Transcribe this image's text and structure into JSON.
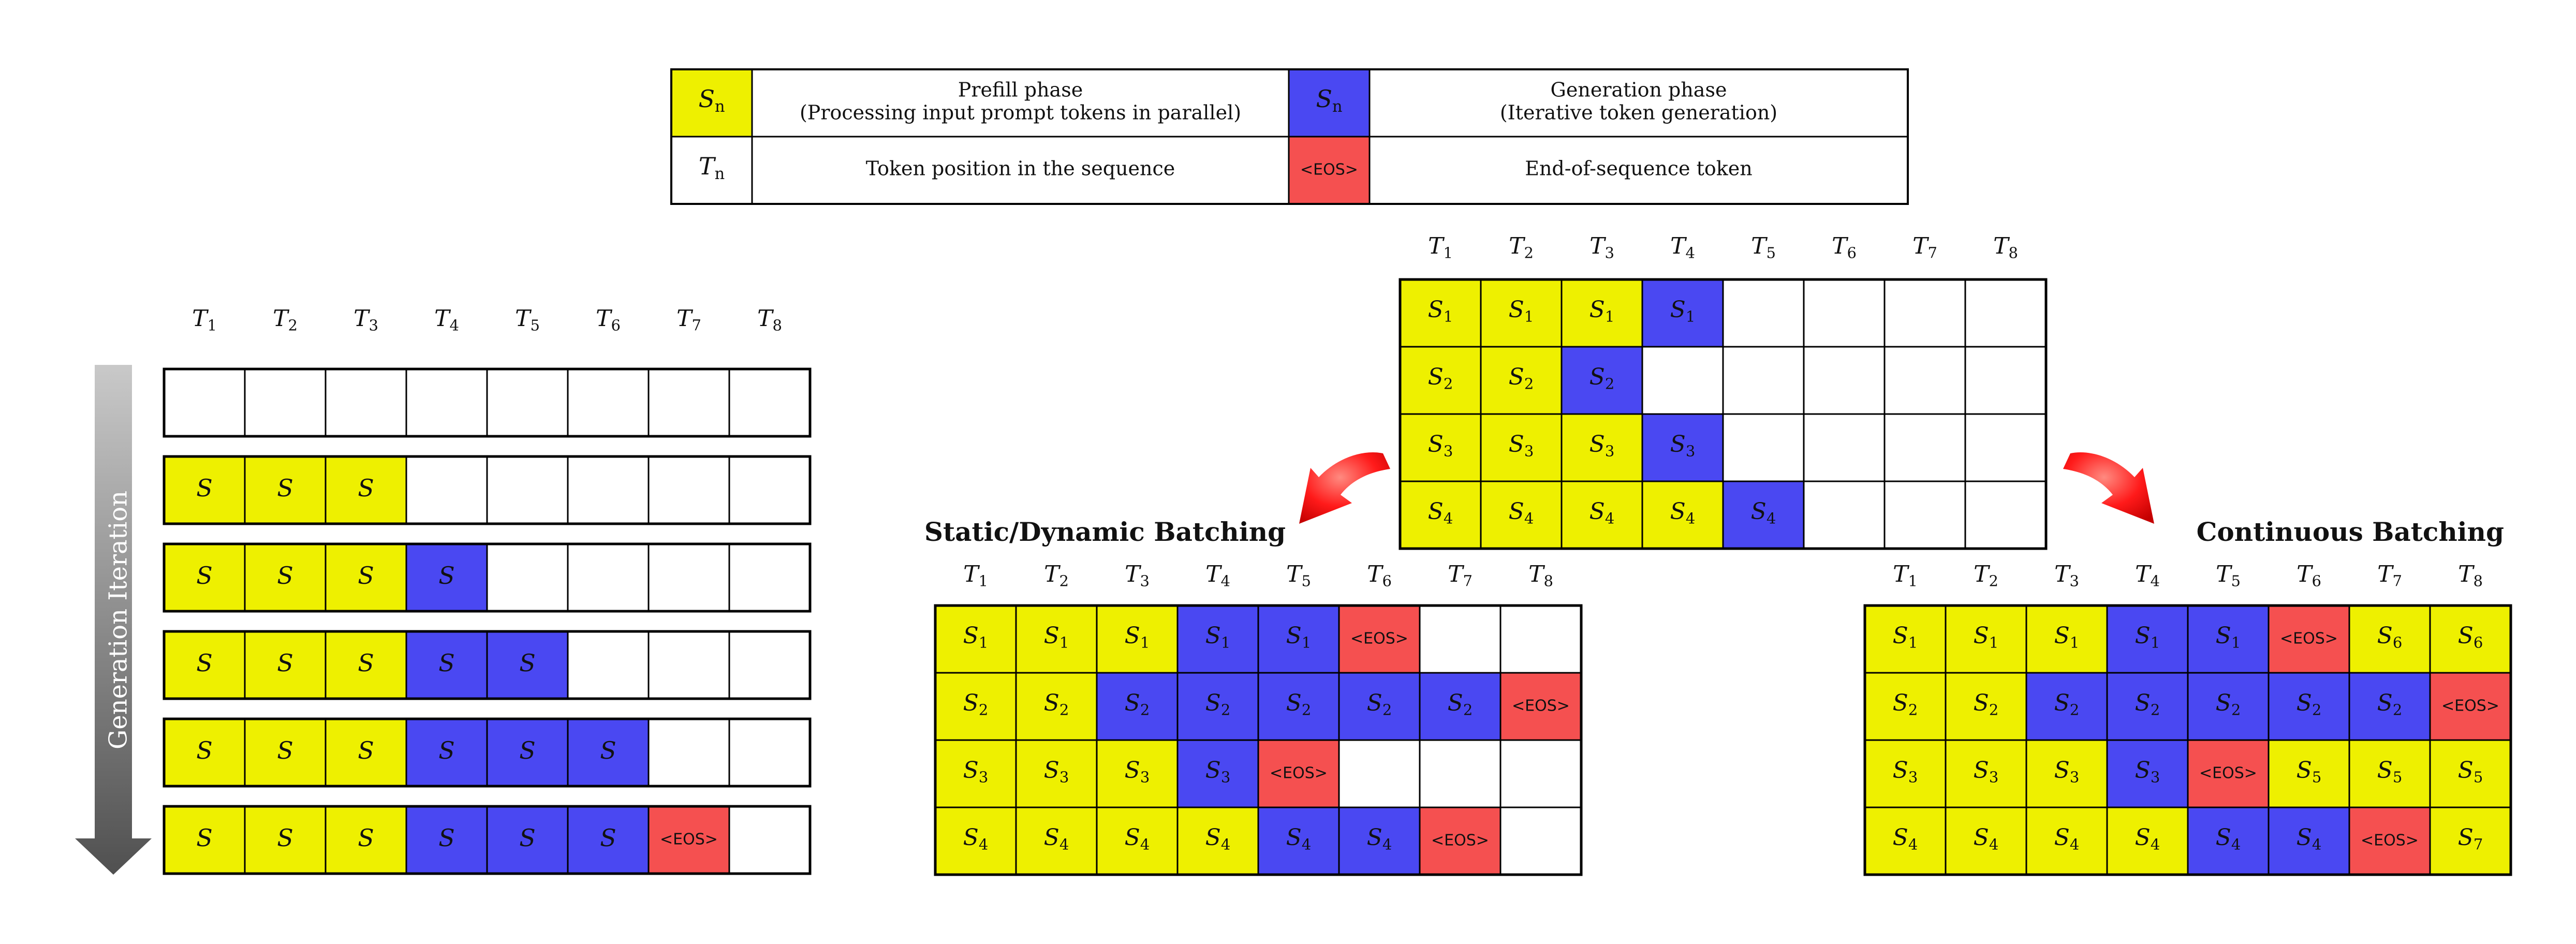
{
  "legend": {
    "rows": [
      [
        {
          "symbol": {
            "base": "S",
            "sub": "n"
          },
          "color": "#eef000",
          "text": [
            "Prefill phase",
            "(Processing input prompt tokens in parallel)"
          ]
        },
        {
          "symbol": {
            "base": "S",
            "sub": "n"
          },
          "color": "#4a48f2",
          "text": [
            "Generation phase",
            "(Iterative token generation)"
          ]
        }
      ],
      [
        {
          "symbol": {
            "base": "T",
            "sub": "n"
          },
          "color": "#ffffff",
          "text": [
            "Token position in the sequence"
          ]
        },
        {
          "symbol": {
            "eos": "<EOS>"
          },
          "color": "#f55050",
          "text": [
            "End-of-sequence token"
          ]
        }
      ]
    ]
  },
  "colors": {
    "prefill": "#eef000",
    "generation": "#4a48f2",
    "eos": "#f55050",
    "empty": "#ffffff",
    "border": "#000000"
  },
  "token_headers": [
    "T1",
    "T2",
    "T3",
    "T4",
    "T5",
    "T6",
    "T7",
    "T8"
  ],
  "eos_label": "<EOS>",
  "generation_iteration": {
    "axis_label": "Generation Iteration",
    "rows": [
      [
        {
          "k": "E"
        },
        {
          "k": "E"
        },
        {
          "k": "E"
        },
        {
          "k": "E"
        },
        {
          "k": "E"
        },
        {
          "k": "E"
        },
        {
          "k": "E"
        },
        {
          "k": "E"
        }
      ],
      [
        {
          "k": "P",
          "t": "S"
        },
        {
          "k": "P",
          "t": "S"
        },
        {
          "k": "P",
          "t": "S"
        },
        {
          "k": "E"
        },
        {
          "k": "E"
        },
        {
          "k": "E"
        },
        {
          "k": "E"
        },
        {
          "k": "E"
        }
      ],
      [
        {
          "k": "P",
          "t": "S"
        },
        {
          "k": "P",
          "t": "S"
        },
        {
          "k": "P",
          "t": "S"
        },
        {
          "k": "G",
          "t": "S"
        },
        {
          "k": "E"
        },
        {
          "k": "E"
        },
        {
          "k": "E"
        },
        {
          "k": "E"
        }
      ],
      [
        {
          "k": "P",
          "t": "S"
        },
        {
          "k": "P",
          "t": "S"
        },
        {
          "k": "P",
          "t": "S"
        },
        {
          "k": "G",
          "t": "S"
        },
        {
          "k": "G",
          "t": "S"
        },
        {
          "k": "E"
        },
        {
          "k": "E"
        },
        {
          "k": "E"
        }
      ],
      [
        {
          "k": "P",
          "t": "S"
        },
        {
          "k": "P",
          "t": "S"
        },
        {
          "k": "P",
          "t": "S"
        },
        {
          "k": "G",
          "t": "S"
        },
        {
          "k": "G",
          "t": "S"
        },
        {
          "k": "G",
          "t": "S"
        },
        {
          "k": "E"
        },
        {
          "k": "E"
        }
      ],
      [
        {
          "k": "P",
          "t": "S"
        },
        {
          "k": "P",
          "t": "S"
        },
        {
          "k": "P",
          "t": "S"
        },
        {
          "k": "G",
          "t": "S"
        },
        {
          "k": "G",
          "t": "S"
        },
        {
          "k": "G",
          "t": "S"
        },
        {
          "k": "X"
        },
        {
          "k": "E"
        }
      ]
    ]
  },
  "initial_batch": {
    "rows": [
      [
        {
          "k": "P",
          "t": "S",
          "s": "1"
        },
        {
          "k": "P",
          "t": "S",
          "s": "1"
        },
        {
          "k": "P",
          "t": "S",
          "s": "1"
        },
        {
          "k": "G",
          "t": "S",
          "s": "1"
        },
        {
          "k": "E"
        },
        {
          "k": "E"
        },
        {
          "k": "E"
        },
        {
          "k": "E"
        }
      ],
      [
        {
          "k": "P",
          "t": "S",
          "s": "2"
        },
        {
          "k": "P",
          "t": "S",
          "s": "2"
        },
        {
          "k": "G",
          "t": "S",
          "s": "2"
        },
        {
          "k": "E"
        },
        {
          "k": "E"
        },
        {
          "k": "E"
        },
        {
          "k": "E"
        },
        {
          "k": "E"
        }
      ],
      [
        {
          "k": "P",
          "t": "S",
          "s": "3"
        },
        {
          "k": "P",
          "t": "S",
          "s": "3"
        },
        {
          "k": "P",
          "t": "S",
          "s": "3"
        },
        {
          "k": "G",
          "t": "S",
          "s": "3"
        },
        {
          "k": "E"
        },
        {
          "k": "E"
        },
        {
          "k": "E"
        },
        {
          "k": "E"
        }
      ],
      [
        {
          "k": "P",
          "t": "S",
          "s": "4"
        },
        {
          "k": "P",
          "t": "S",
          "s": "4"
        },
        {
          "k": "P",
          "t": "S",
          "s": "4"
        },
        {
          "k": "P",
          "t": "S",
          "s": "4"
        },
        {
          "k": "G",
          "t": "S",
          "s": "4"
        },
        {
          "k": "E"
        },
        {
          "k": "E"
        },
        {
          "k": "E"
        }
      ]
    ]
  },
  "static_batching": {
    "title": "Static/Dynamic Batching",
    "rows": [
      [
        {
          "k": "P",
          "t": "S",
          "s": "1"
        },
        {
          "k": "P",
          "t": "S",
          "s": "1"
        },
        {
          "k": "P",
          "t": "S",
          "s": "1"
        },
        {
          "k": "G",
          "t": "S",
          "s": "1"
        },
        {
          "k": "G",
          "t": "S",
          "s": "1"
        },
        {
          "k": "X"
        },
        {
          "k": "E"
        },
        {
          "k": "E"
        }
      ],
      [
        {
          "k": "P",
          "t": "S",
          "s": "2"
        },
        {
          "k": "P",
          "t": "S",
          "s": "2"
        },
        {
          "k": "G",
          "t": "S",
          "s": "2"
        },
        {
          "k": "G",
          "t": "S",
          "s": "2"
        },
        {
          "k": "G",
          "t": "S",
          "s": "2"
        },
        {
          "k": "G",
          "t": "S",
          "s": "2"
        },
        {
          "k": "G",
          "t": "S",
          "s": "2"
        },
        {
          "k": "X"
        }
      ],
      [
        {
          "k": "P",
          "t": "S",
          "s": "3"
        },
        {
          "k": "P",
          "t": "S",
          "s": "3"
        },
        {
          "k": "P",
          "t": "S",
          "s": "3"
        },
        {
          "k": "G",
          "t": "S",
          "s": "3"
        },
        {
          "k": "X"
        },
        {
          "k": "E"
        },
        {
          "k": "E"
        },
        {
          "k": "E"
        }
      ],
      [
        {
          "k": "P",
          "t": "S",
          "s": "4"
        },
        {
          "k": "P",
          "t": "S",
          "s": "4"
        },
        {
          "k": "P",
          "t": "S",
          "s": "4"
        },
        {
          "k": "P",
          "t": "S",
          "s": "4"
        },
        {
          "k": "G",
          "t": "S",
          "s": "4"
        },
        {
          "k": "G",
          "t": "S",
          "s": "4"
        },
        {
          "k": "X"
        },
        {
          "k": "E"
        }
      ]
    ]
  },
  "continuous_batching": {
    "title": "Continuous Batching",
    "rows": [
      [
        {
          "k": "P",
          "t": "S",
          "s": "1"
        },
        {
          "k": "P",
          "t": "S",
          "s": "1"
        },
        {
          "k": "P",
          "t": "S",
          "s": "1"
        },
        {
          "k": "G",
          "t": "S",
          "s": "1"
        },
        {
          "k": "G",
          "t": "S",
          "s": "1"
        },
        {
          "k": "X"
        },
        {
          "k": "P",
          "t": "S",
          "s": "6"
        },
        {
          "k": "P",
          "t": "S",
          "s": "6"
        }
      ],
      [
        {
          "k": "P",
          "t": "S",
          "s": "2"
        },
        {
          "k": "P",
          "t": "S",
          "s": "2"
        },
        {
          "k": "G",
          "t": "S",
          "s": "2"
        },
        {
          "k": "G",
          "t": "S",
          "s": "2"
        },
        {
          "k": "G",
          "t": "S",
          "s": "2"
        },
        {
          "k": "G",
          "t": "S",
          "s": "2"
        },
        {
          "k": "G",
          "t": "S",
          "s": "2"
        },
        {
          "k": "X"
        }
      ],
      [
        {
          "k": "P",
          "t": "S",
          "s": "3"
        },
        {
          "k": "P",
          "t": "S",
          "s": "3"
        },
        {
          "k": "P",
          "t": "S",
          "s": "3"
        },
        {
          "k": "G",
          "t": "S",
          "s": "3"
        },
        {
          "k": "X"
        },
        {
          "k": "P",
          "t": "S",
          "s": "5"
        },
        {
          "k": "P",
          "t": "S",
          "s": "5"
        },
        {
          "k": "P",
          "t": "S",
          "s": "5"
        }
      ],
      [
        {
          "k": "P",
          "t": "S",
          "s": "4"
        },
        {
          "k": "P",
          "t": "S",
          "s": "4"
        },
        {
          "k": "P",
          "t": "S",
          "s": "4"
        },
        {
          "k": "P",
          "t": "S",
          "s": "4"
        },
        {
          "k": "G",
          "t": "S",
          "s": "4"
        },
        {
          "k": "G",
          "t": "S",
          "s": "4"
        },
        {
          "k": "X"
        },
        {
          "k": "P",
          "t": "S",
          "s": "7"
        }
      ]
    ]
  }
}
